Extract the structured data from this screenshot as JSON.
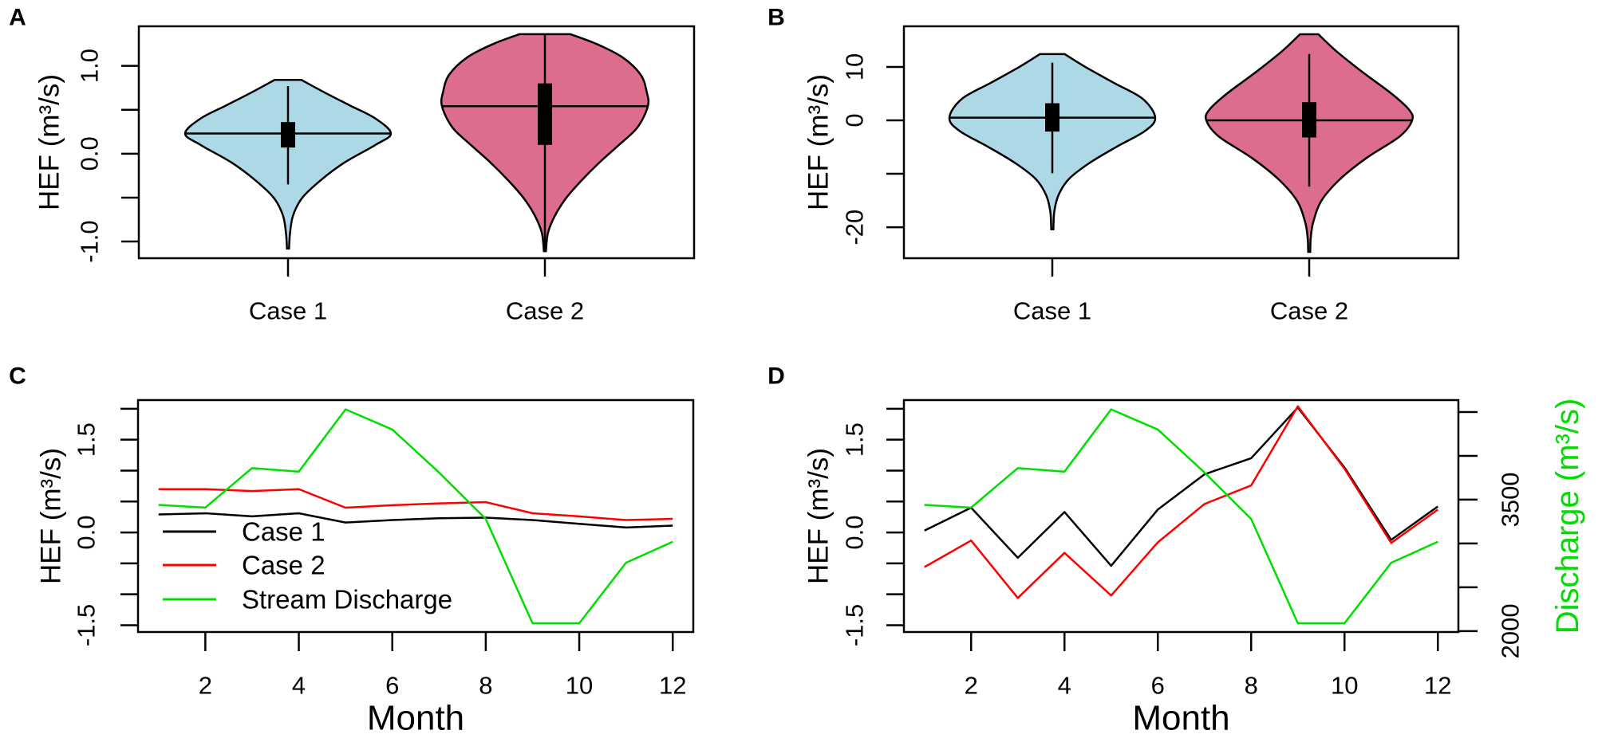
{
  "chart_data": [
    {
      "panel": "A",
      "type": "violin",
      "categories": [
        "Case 1",
        "Case 2"
      ],
      "ylabel": "HEF (m³/s)",
      "ylim": [
        -1.19,
        1.45
      ],
      "yticks": [
        -1.0,
        -0.5,
        0.0,
        0.5,
        1.0
      ],
      "ytick_labels": [
        {
          "value": 1.0,
          "label": "1.0"
        },
        {
          "value": 0.0,
          "label": "0.0"
        },
        {
          "value": -1.0,
          "label": "-1.0"
        }
      ],
      "colors": [
        "#add8e6",
        "#dc6d8d"
      ],
      "violins": [
        {
          "min": -1.08,
          "max": 0.84,
          "whisker": [
            -0.35,
            0.77
          ],
          "box": [
            0.07,
            0.36
          ],
          "hline": 0.23,
          "density": [
            [
              0.84,
              0.13
            ],
            [
              0.7,
              0.35
            ],
            [
              0.55,
              0.6
            ],
            [
              0.4,
              0.85
            ],
            [
              0.23,
              1.0
            ],
            [
              0.1,
              0.85
            ],
            [
              -0.1,
              0.55
            ],
            [
              -0.3,
              0.32
            ],
            [
              -0.5,
              0.14
            ],
            [
              -0.7,
              0.05
            ],
            [
              -0.9,
              0.02
            ],
            [
              -1.08,
              0.01
            ]
          ]
        },
        {
          "min": -1.11,
          "max": 1.36,
          "whisker": [
            -1.11,
            1.36
          ],
          "box": [
            0.1,
            0.8
          ],
          "hline": 0.54,
          "density": [
            [
              1.36,
              0.25
            ],
            [
              1.25,
              0.5
            ],
            [
              1.1,
              0.75
            ],
            [
              0.9,
              0.93
            ],
            [
              0.7,
              0.99
            ],
            [
              0.54,
              1.0
            ],
            [
              0.3,
              0.9
            ],
            [
              0.1,
              0.72
            ],
            [
              -0.1,
              0.53
            ],
            [
              -0.3,
              0.36
            ],
            [
              -0.5,
              0.21
            ],
            [
              -0.7,
              0.1
            ],
            [
              -0.9,
              0.03
            ],
            [
              -1.11,
              0.01
            ]
          ]
        }
      ]
    },
    {
      "panel": "B",
      "type": "violin",
      "categories": [
        "Case 1",
        "Case 2"
      ],
      "ylabel": "HEF (m³/s)",
      "ylim": [
        -25.8,
        17.6
      ],
      "yticks": [
        -20,
        -10,
        0,
        10
      ],
      "ytick_labels": [
        {
          "value": 10,
          "label": "10"
        },
        {
          "value": 0,
          "label": "0"
        },
        {
          "value": -20,
          "label": "-20"
        }
      ],
      "colors": [
        "#add8e6",
        "#dc6d8d"
      ],
      "violins": [
        {
          "min": -20.4,
          "max": 12.4,
          "whisker": [
            -9.9,
            10.8
          ],
          "box": [
            -2.1,
            3.2
          ],
          "hline": 0.5,
          "density": [
            [
              12.4,
              0.12
            ],
            [
              10,
              0.32
            ],
            [
              7,
              0.6
            ],
            [
              4,
              0.88
            ],
            [
              0.5,
              1.0
            ],
            [
              -2,
              0.9
            ],
            [
              -5,
              0.62
            ],
            [
              -8,
              0.36
            ],
            [
              -11,
              0.16
            ],
            [
              -14,
              0.06
            ],
            [
              -17,
              0.02
            ],
            [
              -20.4,
              0.01
            ]
          ]
        },
        {
          "min": -24.6,
          "max": 16.1,
          "whisker": [
            -12.4,
            12.4
          ],
          "box": [
            -3.2,
            3.4
          ],
          "hline": 0.0,
          "density": [
            [
              16.1,
              0.09
            ],
            [
              13,
              0.26
            ],
            [
              9,
              0.52
            ],
            [
              5,
              0.8
            ],
            [
              2,
              0.97
            ],
            [
              0,
              1.0
            ],
            [
              -3,
              0.88
            ],
            [
              -7,
              0.56
            ],
            [
              -11,
              0.3
            ],
            [
              -15,
              0.12
            ],
            [
              -19,
              0.04
            ],
            [
              -22,
              0.015
            ],
            [
              -24.6,
              0.01
            ]
          ]
        }
      ]
    },
    {
      "panel": "C",
      "type": "line",
      "x": [
        1,
        2,
        3,
        4,
        5,
        6,
        7,
        8,
        9,
        10,
        11,
        12
      ],
      "xlabel": "Month",
      "xticks": [
        2,
        4,
        6,
        8,
        10,
        12
      ],
      "xtick_labels": [
        "2",
        "4",
        "6",
        "8",
        "10",
        "12"
      ],
      "xlim": [
        0.56,
        12.44
      ],
      "ylabel": "HEF (m³/s)",
      "ylim": [
        -1.61,
        2.14
      ],
      "yticks": [
        -1.5,
        -1.0,
        -0.5,
        0.0,
        0.5,
        1.0,
        1.5,
        2.0
      ],
      "ytick_labels": [
        {
          "value": 1.5,
          "label": "1.5"
        },
        {
          "value": 0.0,
          "label": "0.0"
        },
        {
          "value": -1.5,
          "label": "-1.5"
        }
      ],
      "secondary_ylim": [
        1990,
        4636
      ],
      "legend_position": "bottom-left",
      "series": [
        {
          "name": "Case 1",
          "color": "#000000",
          "axis": "left",
          "values": [
            0.29,
            0.31,
            0.26,
            0.31,
            0.16,
            0.2,
            0.23,
            0.24,
            0.2,
            0.14,
            0.08,
            0.11
          ]
        },
        {
          "name": "Case 2",
          "color": "#ff0000",
          "axis": "left",
          "values": [
            0.7,
            0.7,
            0.67,
            0.7,
            0.4,
            0.44,
            0.47,
            0.49,
            0.31,
            0.26,
            0.2,
            0.22
          ]
        },
        {
          "name": "Stream Discharge",
          "color": "#00dd00",
          "axis": "right",
          "values": [
            3440,
            3410,
            3860,
            3820,
            4530,
            4300,
            3810,
            3280,
            2090,
            2090,
            2780,
            3020
          ]
        }
      ]
    },
    {
      "panel": "D",
      "type": "line",
      "x": [
        1,
        2,
        3,
        4,
        5,
        6,
        7,
        8,
        9,
        10,
        11,
        12
      ],
      "xlabel": "Month",
      "xticks": [
        2,
        4,
        6,
        8,
        10,
        12
      ],
      "xtick_labels": [
        "2",
        "4",
        "6",
        "8",
        "10",
        "12"
      ],
      "xlim": [
        0.56,
        12.44
      ],
      "ylabel": "HEF (m³/s)",
      "ylim": [
        -1.61,
        2.14
      ],
      "yticks": [
        -1.5,
        -1.0,
        -0.5,
        0.0,
        0.5,
        1.0,
        1.5,
        2.0
      ],
      "ytick_labels": [
        {
          "value": 1.5,
          "label": "1.5"
        },
        {
          "value": 0.0,
          "label": "0.0"
        },
        {
          "value": -1.5,
          "label": "-1.5"
        }
      ],
      "secondary_ylabel": "Discharge (m³/s)",
      "secondary_ylabel_color": "#00dd00",
      "secondary_ylim": [
        1990,
        4636
      ],
      "secondary_yticks": [
        2000,
        2500,
        3000,
        3500,
        4000,
        4500
      ],
      "secondary_ytick_labels": [
        {
          "value": 3500,
          "label": "3500"
        },
        {
          "value": 2000,
          "label": "2000"
        }
      ],
      "series": [
        {
          "color": "#000000",
          "axis": "left",
          "values": [
            0.03,
            0.4,
            -0.41,
            0.33,
            -0.54,
            0.37,
            0.94,
            1.2,
            2.02,
            1.05,
            -0.12,
            0.42
          ]
        },
        {
          "color": "#ff0000",
          "axis": "left",
          "values": [
            -0.56,
            -0.13,
            -1.06,
            -0.33,
            -1.02,
            -0.16,
            0.46,
            0.76,
            2.04,
            1.03,
            -0.17,
            0.37
          ]
        },
        {
          "color": "#00dd00",
          "axis": "right",
          "values": [
            3440,
            3410,
            3860,
            3820,
            4530,
            4300,
            3810,
            3280,
            2090,
            2090,
            2780,
            3020
          ]
        }
      ]
    }
  ]
}
